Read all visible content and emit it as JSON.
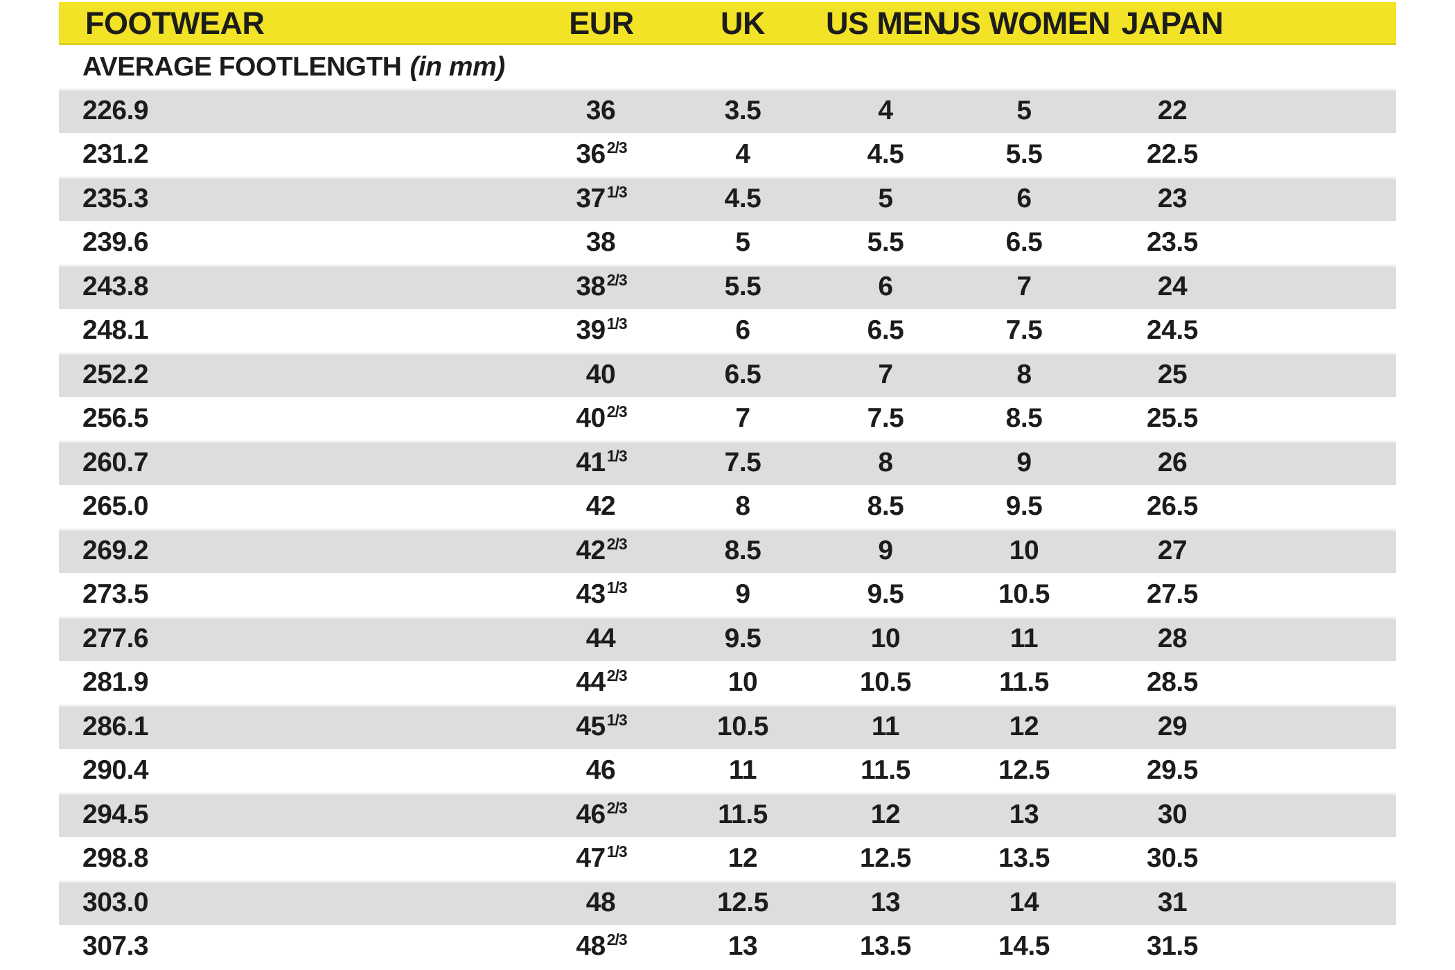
{
  "table": {
    "header": {
      "footwear": "FOOTWEAR",
      "eur": "EUR",
      "uk": "UK",
      "us_men": "US MEN",
      "us_women": "US WOMEN",
      "japan": "JAPAN"
    },
    "subheader": {
      "label": "AVERAGE FOOTLENGTH",
      "unit": "(in mm)"
    },
    "colors": {
      "header_bg": "#f2e327",
      "header_edge": "#ddce24",
      "row_gray": "#dcddde",
      "row_white": "#ffffff",
      "text": "#1c1c1a"
    },
    "rows": [
      {
        "footlength": "226.9",
        "eur_whole": "36",
        "eur_frac": "",
        "uk": "3.5",
        "us_men": "4",
        "us_women": "5",
        "japan": "22"
      },
      {
        "footlength": "231.2",
        "eur_whole": "36",
        "eur_frac": "2/3",
        "uk": "4",
        "us_men": "4.5",
        "us_women": "5.5",
        "japan": "22.5"
      },
      {
        "footlength": "235.3",
        "eur_whole": "37",
        "eur_frac": "1/3",
        "uk": "4.5",
        "us_men": "5",
        "us_women": "6",
        "japan": "23"
      },
      {
        "footlength": "239.6",
        "eur_whole": "38",
        "eur_frac": "",
        "uk": "5",
        "us_men": "5.5",
        "us_women": "6.5",
        "japan": "23.5"
      },
      {
        "footlength": "243.8",
        "eur_whole": "38",
        "eur_frac": "2/3",
        "uk": "5.5",
        "us_men": "6",
        "us_women": "7",
        "japan": "24"
      },
      {
        "footlength": "248.1",
        "eur_whole": "39",
        "eur_frac": "1/3",
        "uk": "6",
        "us_men": "6.5",
        "us_women": "7.5",
        "japan": "24.5"
      },
      {
        "footlength": "252.2",
        "eur_whole": "40",
        "eur_frac": "",
        "uk": "6.5",
        "us_men": "7",
        "us_women": "8",
        "japan": "25"
      },
      {
        "footlength": "256.5",
        "eur_whole": "40",
        "eur_frac": "2/3",
        "uk": "7",
        "us_men": "7.5",
        "us_women": "8.5",
        "japan": "25.5"
      },
      {
        "footlength": "260.7",
        "eur_whole": "41",
        "eur_frac": "1/3",
        "uk": "7.5",
        "us_men": "8",
        "us_women": "9",
        "japan": "26"
      },
      {
        "footlength": "265.0",
        "eur_whole": "42",
        "eur_frac": "",
        "uk": "8",
        "us_men": "8.5",
        "us_women": "9.5",
        "japan": "26.5"
      },
      {
        "footlength": "269.2",
        "eur_whole": "42",
        "eur_frac": "2/3",
        "uk": "8.5",
        "us_men": "9",
        "us_women": "10",
        "japan": "27"
      },
      {
        "footlength": "273.5",
        "eur_whole": "43",
        "eur_frac": "1/3",
        "uk": "9",
        "us_men": "9.5",
        "us_women": "10.5",
        "japan": "27.5"
      },
      {
        "footlength": "277.6",
        "eur_whole": "44",
        "eur_frac": "",
        "uk": "9.5",
        "us_men": "10",
        "us_women": "11",
        "japan": "28"
      },
      {
        "footlength": "281.9",
        "eur_whole": "44",
        "eur_frac": "2/3",
        "uk": "10",
        "us_men": "10.5",
        "us_women": "11.5",
        "japan": "28.5"
      },
      {
        "footlength": "286.1",
        "eur_whole": "45",
        "eur_frac": "1/3",
        "uk": "10.5",
        "us_men": "11",
        "us_women": "12",
        "japan": "29"
      },
      {
        "footlength": "290.4",
        "eur_whole": "46",
        "eur_frac": "",
        "uk": "11",
        "us_men": "11.5",
        "us_women": "12.5",
        "japan": "29.5"
      },
      {
        "footlength": "294.5",
        "eur_whole": "46",
        "eur_frac": "2/3",
        "uk": "11.5",
        "us_men": "12",
        "us_women": "13",
        "japan": "30"
      },
      {
        "footlength": "298.8",
        "eur_whole": "47",
        "eur_frac": "1/3",
        "uk": "12",
        "us_men": "12.5",
        "us_women": "13.5",
        "japan": "30.5"
      },
      {
        "footlength": "303.0",
        "eur_whole": "48",
        "eur_frac": "",
        "uk": "12.5",
        "us_men": "13",
        "us_women": "14",
        "japan": "31"
      },
      {
        "footlength": "307.3",
        "eur_whole": "48",
        "eur_frac": "2/3",
        "uk": "13",
        "us_men": "13.5",
        "us_women": "14.5",
        "japan": "31.5"
      }
    ]
  }
}
